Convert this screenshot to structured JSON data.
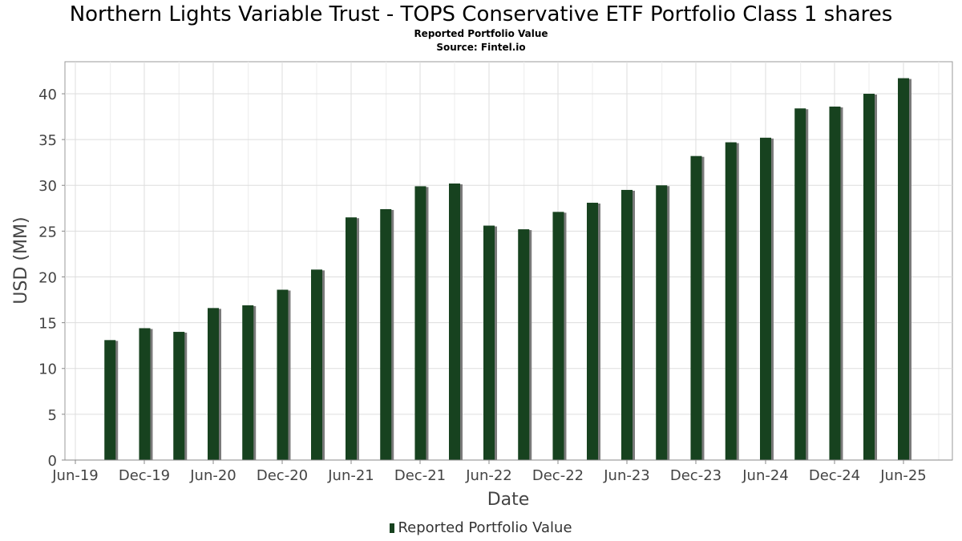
{
  "chart_data": {
    "type": "bar",
    "title": "Northern Lights Variable Trust - TOPS Conservative ETF Portfolio Class 1 shares",
    "subtitle": "Reported Portfolio Value",
    "source": "Source: Fintel.io",
    "xlabel": "Date",
    "ylabel": "USD (MM)",
    "ylim": [
      0,
      43.5
    ],
    "yticks": [
      "0",
      "5",
      "10",
      "15",
      "20",
      "25",
      "30",
      "35",
      "40"
    ],
    "xticks": [
      "Jun-19",
      "Dec-19",
      "Jun-20",
      "Dec-20",
      "Jun-21",
      "Dec-21",
      "Jun-22",
      "Dec-22",
      "Jun-23",
      "Dec-23",
      "Jun-24",
      "Dec-24",
      "Jun-25"
    ],
    "grid": true,
    "legend_position": "bottom",
    "bar_color": "#17421f",
    "shadow_color": "#7a7a7a",
    "series": [
      {
        "name": "Reported Portfolio Value",
        "points": [
          {
            "date": "2019-09-30",
            "value": 13.1
          },
          {
            "date": "2019-12-31",
            "value": 14.4
          },
          {
            "date": "2020-03-31",
            "value": 14.0
          },
          {
            "date": "2020-06-30",
            "value": 16.6
          },
          {
            "date": "2020-09-30",
            "value": 16.9
          },
          {
            "date": "2020-12-31",
            "value": 18.6
          },
          {
            "date": "2021-03-31",
            "value": 20.8
          },
          {
            "date": "2021-06-30",
            "value": 26.5
          },
          {
            "date": "2021-09-30",
            "value": 27.4
          },
          {
            "date": "2021-12-31",
            "value": 29.9
          },
          {
            "date": "2022-03-31",
            "value": 30.2
          },
          {
            "date": "2022-06-30",
            "value": 25.6
          },
          {
            "date": "2022-09-30",
            "value": 25.2
          },
          {
            "date": "2022-12-31",
            "value": 27.1
          },
          {
            "date": "2023-03-31",
            "value": 28.1
          },
          {
            "date": "2023-06-30",
            "value": 29.5
          },
          {
            "date": "2023-09-30",
            "value": 30.0
          },
          {
            "date": "2023-12-31",
            "value": 33.2
          },
          {
            "date": "2024-03-31",
            "value": 34.7
          },
          {
            "date": "2024-06-30",
            "value": 35.2
          },
          {
            "date": "2024-09-30",
            "value": 38.4
          },
          {
            "date": "2024-12-31",
            "value": 38.6
          },
          {
            "date": "2025-03-31",
            "value": 40.0
          },
          {
            "date": "2025-06-30",
            "value": 41.7
          }
        ]
      }
    ]
  }
}
